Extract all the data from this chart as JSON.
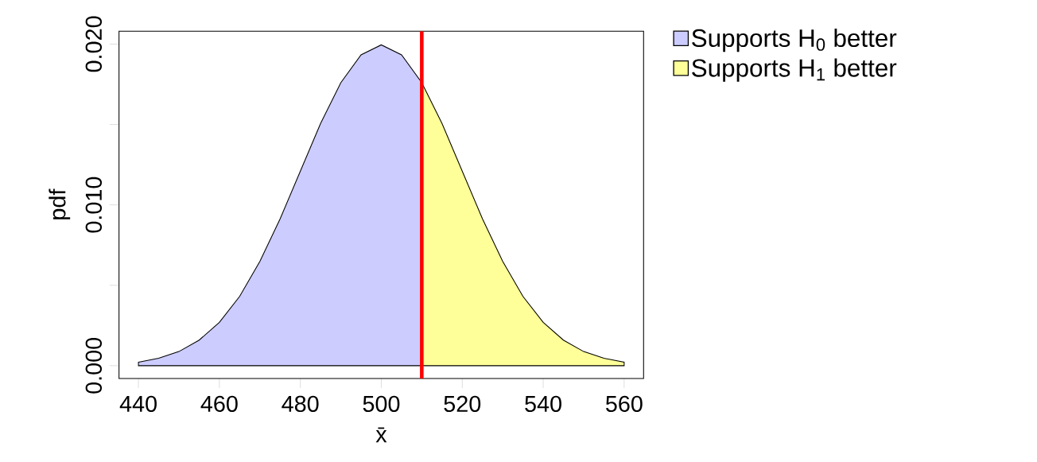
{
  "chart_data": {
    "type": "area",
    "xlabel": "x̄",
    "ylabel": "pdf",
    "series": [
      {
        "name": "Supports H$_{0}$ better",
        "color": "#ccccff",
        "x": [
          440,
          445,
          450,
          455,
          460,
          465,
          470,
          475,
          480,
          485,
          490,
          495,
          500,
          505,
          510
        ],
        "values": [
          0.00022,
          0.00046,
          0.00088,
          0.00159,
          0.0027,
          0.00431,
          0.00648,
          0.00913,
          0.0121,
          0.01506,
          0.0176,
          0.01933,
          0.01995,
          0.01933,
          0.0176
        ]
      },
      {
        "name": "Supports H$_{1}$ better",
        "color": "#ffff99",
        "x": [
          510,
          515,
          520,
          525,
          530,
          535,
          540,
          545,
          550,
          555,
          560
        ],
        "values": [
          0.0176,
          0.01506,
          0.0121,
          0.00913,
          0.00648,
          0.00431,
          0.0027,
          0.00159,
          0.00088,
          0.00046,
          0.00022
        ]
      }
    ],
    "xlim": [
      435.2,
      564.8
    ],
    "ylim": [
      -0.0008,
      0.0208
    ],
    "xticks": [
      440,
      460,
      480,
      500,
      520,
      540,
      560
    ],
    "yticks": [
      {
        "value": 0,
        "label": "0.000"
      },
      {
        "value": 0.005,
        "label": null
      },
      {
        "value": 0.01,
        "label": "0.010"
      },
      {
        "value": 0.015,
        "label": null
      },
      {
        "value": 0.02,
        "label": "0.020"
      }
    ],
    "ref_lines": [
      {
        "axis": "x",
        "value": 510,
        "color": "#ff0000"
      }
    ],
    "legend": "top right",
    "grid": false
  }
}
